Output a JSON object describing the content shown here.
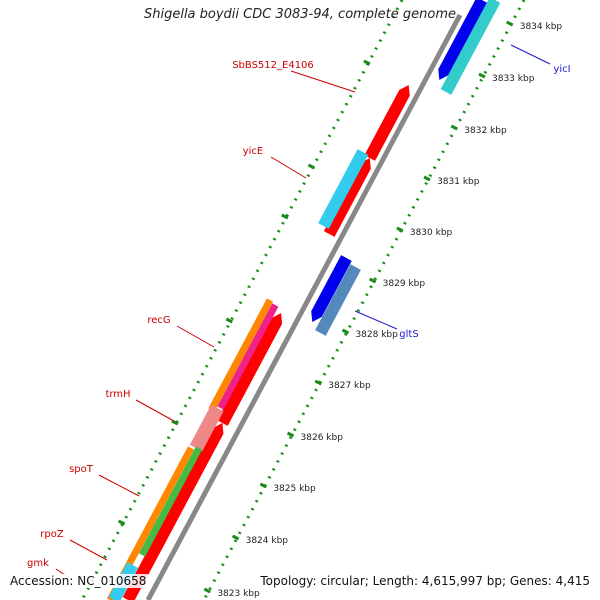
{
  "title": "Shigella boydii CDC 3083-94, complete genome",
  "footer": {
    "accession": "Accession: NC_010658",
    "summary": "Topology: circular; Length: 4,615,997 bp; Genes: 4,415"
  },
  "scale_labels": [
    "3834 kbp",
    "3833 kbp",
    "3832 kbp",
    "3831 kbp",
    "3830 kbp",
    "3829 kbp",
    "3828 kbp",
    "3827 kbp",
    "3826 kbp",
    "3825 kbp",
    "3824 kbp",
    "3823 kbp"
  ],
  "gene_labels_left": [
    "SbBS512_E4106",
    "yicE",
    "recG",
    "trmH",
    "spoT",
    "rpoZ",
    "gmk"
  ],
  "gene_labels_right": [
    "yicI",
    "gltS"
  ],
  "colors": {
    "backbone": "#888888",
    "scale_ticks": "#1a8a1a",
    "forward_label": "#cc0000",
    "reverse_label": "#1a1acc",
    "red": "#ff0000",
    "blue": "#0000ee",
    "cyan": "#33ccee",
    "teal": "#33cccc",
    "steel": "#5588bb",
    "orange": "#ff8800",
    "magenta": "#ee2288",
    "pink": "#ee8888",
    "green": "#44bb44"
  }
}
